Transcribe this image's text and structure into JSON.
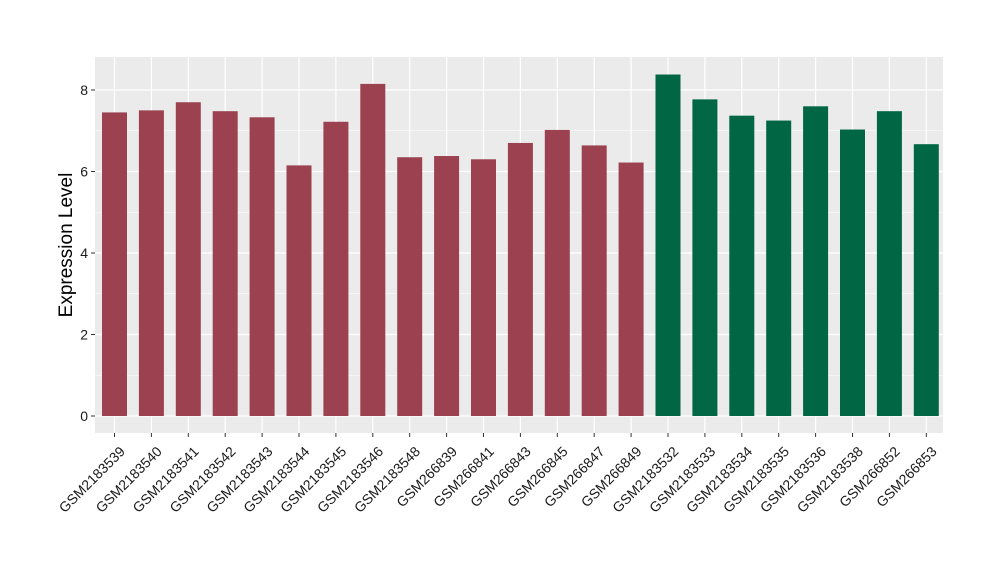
{
  "chart_data": {
    "type": "bar",
    "title": "",
    "xlabel": "",
    "ylabel": "Expression Level",
    "ylim": [
      0,
      8.8
    ],
    "yticks": [
      0,
      2,
      4,
      6,
      8
    ],
    "grid": true,
    "legend": "none",
    "categories": [
      "GSM2183539",
      "GSM2183540",
      "GSM2183541",
      "GSM2183542",
      "GSM2183543",
      "GSM2183544",
      "GSM2183545",
      "GSM2183546",
      "GSM2183548",
      "GSM266839",
      "GSM266841",
      "GSM266843",
      "GSM266845",
      "GSM266847",
      "GSM266849",
      "GSM2183532",
      "GSM2183533",
      "GSM2183534",
      "GSM2183535",
      "GSM2183536",
      "GSM2183538",
      "GSM266852",
      "GSM266853"
    ],
    "values": [
      7.45,
      7.5,
      7.7,
      7.48,
      7.33,
      6.15,
      7.22,
      8.15,
      6.35,
      6.38,
      6.3,
      6.7,
      7.02,
      6.64,
      6.22,
      8.38,
      7.77,
      7.37,
      7.25,
      7.6,
      7.03,
      7.48,
      6.67
    ],
    "colors": [
      "#9b4150",
      "#9b4150",
      "#9b4150",
      "#9b4150",
      "#9b4150",
      "#9b4150",
      "#9b4150",
      "#9b4150",
      "#9b4150",
      "#9b4150",
      "#9b4150",
      "#9b4150",
      "#9b4150",
      "#9b4150",
      "#9b4150",
      "#006644",
      "#006644",
      "#006644",
      "#006644",
      "#006644",
      "#006644",
      "#006644",
      "#006644"
    ],
    "panel_background": "#ebebeb",
    "grid_color": "#ffffff"
  }
}
